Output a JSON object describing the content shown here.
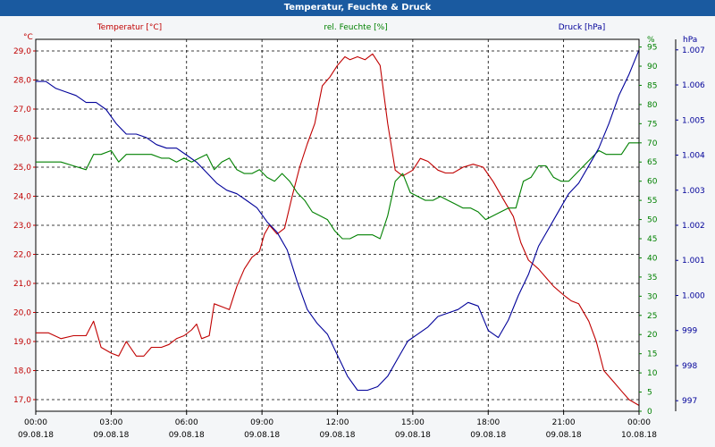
{
  "window": {
    "title": "Temperatur, Feuchte & Druck"
  },
  "chart_data": {
    "type": "line",
    "title": "Temperatur, Feuchte & Druck",
    "grid": true,
    "colors": {
      "temperature": "#c00000",
      "humidity": "#008000",
      "pressure": "#000099"
    },
    "x_ticks": [
      {
        "time": "00:00",
        "date": "09.08.18"
      },
      {
        "time": "03:00",
        "date": "09.08.18"
      },
      {
        "time": "06:00",
        "date": "09.08.18"
      },
      {
        "time": "09:00",
        "date": "09.08.18"
      },
      {
        "time": "12:00",
        "date": "09.08.18"
      },
      {
        "time": "15:00",
        "date": "09.08.18"
      },
      {
        "time": "18:00",
        "date": "09.08.18"
      },
      {
        "time": "21:00",
        "date": "09.08.18"
      },
      {
        "time": "00:00",
        "date": "10.08.18"
      }
    ],
    "x_range_hours": [
      0,
      24
    ],
    "axes": {
      "temperature": {
        "unit": "°C",
        "legend": "Temperatur [°C]",
        "range": [
          16.6,
          29.4
        ],
        "ticks": [
          "17,0",
          "18,0",
          "19,0",
          "20,0",
          "21,0",
          "22,0",
          "23,0",
          "24,0",
          "25,0",
          "26,0",
          "27,0",
          "28,0",
          "29,0"
        ]
      },
      "humidity": {
        "unit": "%",
        "legend": "rel. Feuchte [%]",
        "range": [
          0,
          97
        ],
        "ticks": [
          "0",
          "5",
          "10",
          "15",
          "20",
          "25",
          "30",
          "35",
          "40",
          "45",
          "50",
          "55",
          "60",
          "65",
          "70",
          "75",
          "80",
          "85",
          "90",
          "95"
        ]
      },
      "pressure": {
        "unit": "hPa",
        "legend": "Druck [hPa]",
        "range": [
          996.7,
          1007.3
        ],
        "ticks": [
          "997",
          "998",
          "999",
          "1.000",
          "1.001",
          "1.002",
          "1.003",
          "1.004",
          "1.005",
          "1.006",
          "1.007"
        ]
      }
    },
    "series": [
      {
        "name": "Temperatur [°C]",
        "key": "temperature",
        "x": [
          0,
          0.5,
          1,
          1.5,
          2,
          2.3,
          2.6,
          3,
          3.3,
          3.6,
          4,
          4.3,
          4.6,
          5,
          5.3,
          5.6,
          5.9,
          6.2,
          6.4,
          6.6,
          6.9,
          7.1,
          7.4,
          7.7,
          8,
          8.3,
          8.6,
          8.9,
          9.1,
          9.3,
          9.6,
          9.9,
          10.2,
          10.5,
          10.8,
          11.1,
          11.4,
          11.7,
          12,
          12.3,
          12.5,
          12.8,
          13.1,
          13.4,
          13.7,
          14,
          14.3,
          14.6,
          15,
          15.3,
          15.6,
          16,
          16.3,
          16.6,
          17,
          17.4,
          17.8,
          18.2,
          18.6,
          19,
          19.3,
          19.6,
          20,
          20.3,
          20.6,
          21,
          21.3,
          21.6,
          22,
          22.3,
          22.6,
          23,
          23.3,
          23.6,
          24
        ],
        "values": [
          19.3,
          19.3,
          19.1,
          19.2,
          19.2,
          19.7,
          18.8,
          18.6,
          18.5,
          19,
          18.5,
          18.5,
          18.8,
          18.8,
          18.9,
          19.1,
          19.2,
          19.4,
          19.6,
          19.1,
          19.2,
          20.3,
          20.2,
          20.1,
          20.9,
          21.5,
          21.9,
          22.1,
          22.7,
          23.0,
          22.7,
          22.9,
          24.0,
          25.0,
          25.8,
          26.5,
          27.8,
          28.1,
          28.5,
          28.8,
          28.7,
          28.8,
          28.7,
          28.9,
          28.5,
          26.5,
          24.9,
          24.7,
          24.9,
          25.3,
          25.2,
          24.9,
          24.8,
          24.8,
          25.0,
          25.1,
          25.0,
          24.5,
          23.9,
          23.3,
          22.4,
          21.8,
          21.5,
          21.2,
          20.9,
          20.6,
          20.4,
          20.3,
          19.7,
          19.0,
          18.0,
          17.6,
          17.3,
          17.0,
          16.8
        ]
      },
      {
        "name": "rel. Feuchte [%]",
        "key": "humidity",
        "x": [
          0,
          0.5,
          1,
          1.5,
          2,
          2.3,
          2.6,
          3,
          3.3,
          3.6,
          4,
          4.3,
          4.6,
          5,
          5.3,
          5.6,
          5.9,
          6.2,
          6.5,
          6.8,
          7.1,
          7.4,
          7.7,
          8,
          8.3,
          8.6,
          8.9,
          9.2,
          9.5,
          9.8,
          10.1,
          10.4,
          10.7,
          11,
          11.3,
          11.6,
          11.9,
          12.2,
          12.5,
          12.8,
          13.1,
          13.4,
          13.7,
          14,
          14.3,
          14.6,
          14.9,
          15.2,
          15.5,
          15.8,
          16.1,
          16.4,
          16.7,
          17,
          17.3,
          17.6,
          17.9,
          18.2,
          18.5,
          18.8,
          19.1,
          19.4,
          19.7,
          20,
          20.3,
          20.6,
          20.9,
          21.2,
          21.5,
          21.8,
          22.1,
          22.4,
          22.7,
          23,
          23.3,
          23.6,
          24
        ],
        "values": [
          65,
          65,
          65,
          64,
          63,
          67,
          67,
          68,
          65,
          67,
          67,
          67,
          67,
          66,
          66,
          65,
          66,
          65,
          66,
          67,
          63,
          65,
          66,
          63,
          62,
          62,
          63,
          61,
          60,
          62,
          60,
          57,
          55,
          52,
          51,
          50,
          47,
          45,
          45,
          46,
          46,
          46,
          45,
          51,
          60,
          62,
          57,
          56,
          55,
          55,
          56,
          55,
          54,
          53,
          53,
          52,
          50,
          51,
          52,
          53,
          53,
          60,
          61,
          64,
          64,
          61,
          60,
          60,
          62,
          64,
          66,
          68,
          67,
          67,
          67,
          70,
          70
        ]
      },
      {
        "name": "Druck [hPa]",
        "key": "pressure",
        "x": [
          0,
          0.4,
          0.8,
          1.2,
          1.6,
          2,
          2.4,
          2.8,
          3.2,
          3.6,
          4,
          4.4,
          4.8,
          5.2,
          5.6,
          6,
          6.4,
          6.8,
          7.2,
          7.6,
          8,
          8.4,
          8.8,
          9.2,
          9.6,
          10,
          10.4,
          10.8,
          11.2,
          11.6,
          12,
          12.4,
          12.8,
          13.2,
          13.6,
          14,
          14.4,
          14.8,
          15.2,
          15.6,
          16,
          16.4,
          16.8,
          17.2,
          17.6,
          18,
          18.4,
          18.8,
          19.2,
          19.6,
          20,
          20.4,
          20.8,
          21.2,
          21.6,
          22,
          22.4,
          22.8,
          23.2,
          23.6,
          24
        ],
        "values": [
          1006.1,
          1006.1,
          1005.9,
          1005.8,
          1005.7,
          1005.5,
          1005.5,
          1005.3,
          1004.9,
          1004.6,
          1004.6,
          1004.5,
          1004.3,
          1004.2,
          1004.2,
          1004.0,
          1003.8,
          1003.5,
          1003.2,
          1003.0,
          1002.9,
          1002.7,
          1002.5,
          1002.1,
          1001.8,
          1001.3,
          1000.4,
          999.6,
          999.2,
          998.9,
          998.3,
          997.7,
          997.3,
          997.3,
          997.4,
          997.7,
          998.2,
          998.7,
          998.9,
          999.1,
          999.4,
          999.5,
          999.6,
          999.8,
          999.7,
          999.0,
          998.8,
          999.3,
          1000.0,
          1000.6,
          1001.4,
          1001.9,
          1002.4,
          1002.9,
          1003.2,
          1003.7,
          1004.2,
          1004.9,
          1005.7,
          1006.3,
          1007.0
        ]
      }
    ]
  }
}
